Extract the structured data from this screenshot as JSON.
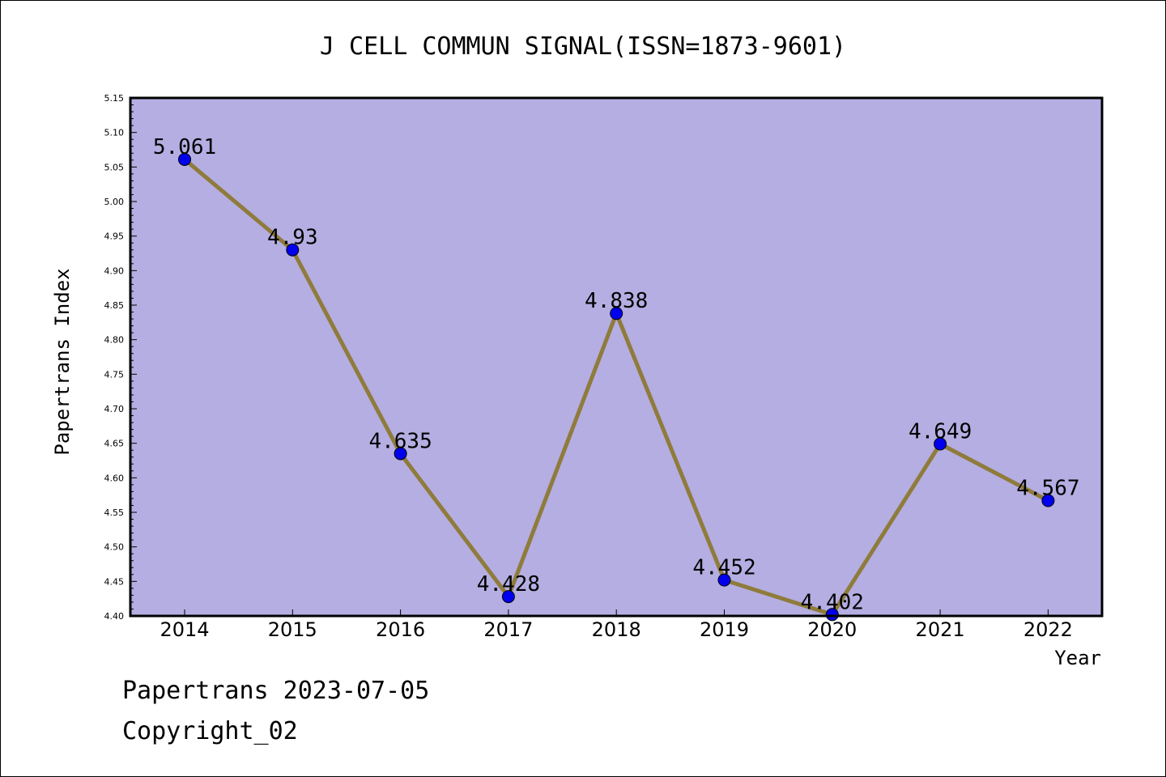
{
  "chart_data": {
    "type": "line",
    "title": "J CELL COMMUN SIGNAL(ISSN=1873-9601)",
    "xlabel": "Year",
    "ylabel": "Papertrans Index",
    "categories": [
      "2014",
      "2015",
      "2016",
      "2017",
      "2018",
      "2019",
      "2020",
      "2021",
      "2022"
    ],
    "values": [
      5.061,
      4.93,
      4.635,
      4.428,
      4.838,
      4.452,
      4.402,
      4.649,
      4.567
    ],
    "data_labels": [
      "5.061",
      "4.93",
      "4.635",
      "4.428",
      "4.838",
      "4.452",
      "4.402",
      "4.649",
      "4.567"
    ],
    "ylim": [
      4.4,
      5.15
    ],
    "yticks": [
      "4.40",
      "4.45",
      "4.50",
      "4.55",
      "4.60",
      "4.65",
      "4.70",
      "4.75",
      "4.80",
      "4.85",
      "4.90",
      "4.95",
      "5.00",
      "5.05",
      "5.10",
      "5.15"
    ],
    "grid": false,
    "legend": "none",
    "colors": {
      "plot_background": "#b4aee2",
      "line": "#8f7b3b",
      "marker": "#0000ee",
      "frame": "#000000"
    }
  },
  "footer": {
    "source": "Papertrans 2023-07-05",
    "copyright": "Copyright_02"
  }
}
